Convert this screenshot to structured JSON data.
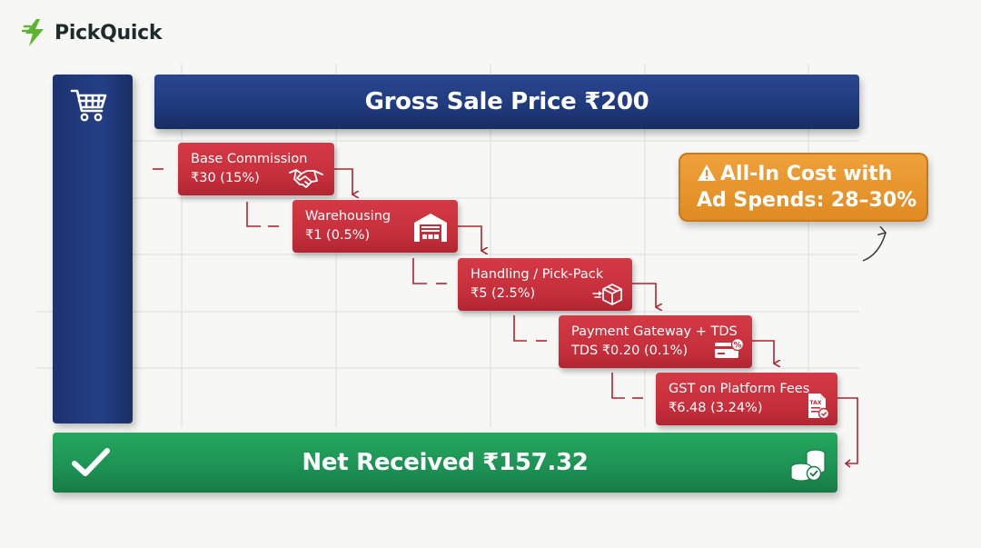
{
  "brand": {
    "name": "PickQuick",
    "color": "#5cb531"
  },
  "gross": {
    "label": "Gross Sale Price ₹200",
    "color": "#1f3a7c"
  },
  "fees": [
    {
      "title": "Base Commission",
      "value": "₹30 (15%)",
      "icon": "handshake-icon"
    },
    {
      "title": "Warehousing",
      "value": "₹1 (0.5%)",
      "icon": "warehouse-icon"
    },
    {
      "title": "Handling / Pick-Pack",
      "value": "₹5 (2.5%)",
      "icon": "box-icon"
    },
    {
      "title": "Payment Gateway + TDS",
      "value": "TDS ₹0.20 (0.1%)",
      "icon": "card-percent-icon"
    },
    {
      "title": "GST on Platform Fees",
      "value": "₹6.48 (3.24%)",
      "icon": "tax-document-icon"
    }
  ],
  "callout": {
    "line1": "All-In Cost with",
    "line2": "Ad Spends: 28–30%",
    "icon": "warning-icon",
    "color": "#e8962c"
  },
  "net": {
    "label": "Net Received ₹157.32",
    "color": "#1d9153"
  },
  "colors": {
    "fee": "#c8303c",
    "connector": "#b0242f"
  }
}
